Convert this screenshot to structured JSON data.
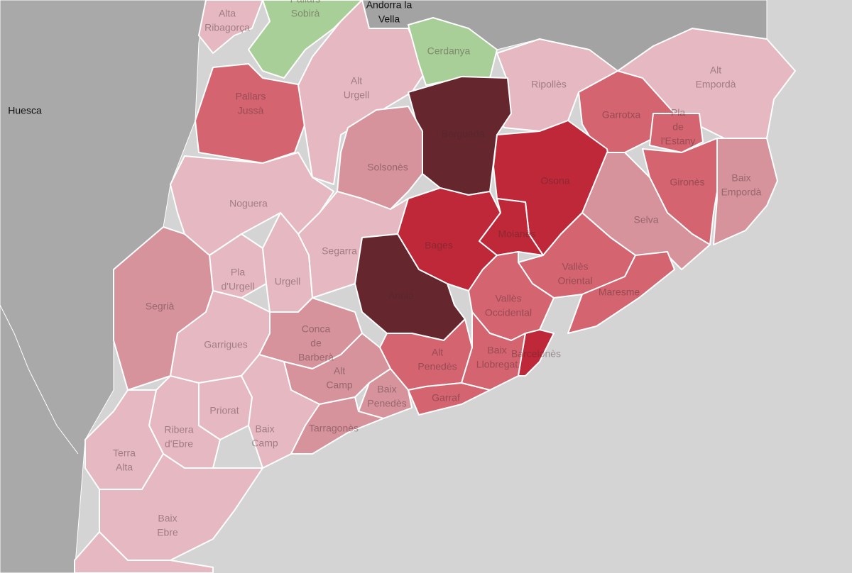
{
  "places": [
    {
      "label": [
        "Huesca"
      ]
    },
    {
      "label": [
        "Andorra la",
        "Vella"
      ]
    }
  ],
  "regions": [
    {
      "label": [
        "Alta",
        "Ribagorça"
      ],
      "color": "#e6b8c1"
    },
    {
      "label": [
        "Pallars",
        "Sobirà"
      ],
      "color": "#a9cf99"
    },
    {
      "label": [
        "Pallars",
        "Jussà"
      ],
      "color": "#d4646f"
    },
    {
      "label": [
        "Alt",
        "Urgell"
      ],
      "color": "#e6b8c1"
    },
    {
      "label": [
        "Cerdanya"
      ],
      "color": "#a9cf99"
    },
    {
      "label": [
        "Ripollès"
      ],
      "color": "#e6b8c1"
    },
    {
      "label": [
        "Alt",
        "Empordà"
      ],
      "color": "#e6b8c1"
    },
    {
      "label": [
        "Berguedà"
      ],
      "color": "#66262e"
    },
    {
      "label": [
        "Garrotxa"
      ],
      "color": "#d4646f"
    },
    {
      "label": [
        "Pla",
        "de",
        "l'Estany"
      ],
      "color": "#d4646f"
    },
    {
      "label": [
        "Solsonès"
      ],
      "color": "#d6939c"
    },
    {
      "label": [
        "Osona"
      ],
      "color": "#bf2838"
    },
    {
      "label": [
        "Gironès"
      ],
      "color": "#d4646f"
    },
    {
      "label": [
        "Baix",
        "Empordà"
      ],
      "color": "#d6939c"
    },
    {
      "label": [
        "Noguera"
      ],
      "color": "#e6b8c1"
    },
    {
      "label": [
        "Selva"
      ],
      "color": "#d6939c"
    },
    {
      "label": [
        "Segarra"
      ],
      "color": "#e6b8c1"
    },
    {
      "label": [
        "Bages"
      ],
      "color": "#bf2838"
    },
    {
      "label": [
        "Moianès"
      ],
      "color": "#bf2838"
    },
    {
      "label": [
        "Pla",
        "d'Urgell"
      ],
      "color": "#e6b8c1"
    },
    {
      "label": [
        "Urgell"
      ],
      "color": "#e6b8c1"
    },
    {
      "label": [
        "Vallès",
        "Oriental"
      ],
      "color": "#d4646f"
    },
    {
      "label": [
        "Maresme"
      ],
      "color": "#d4646f"
    },
    {
      "label": [
        "Segrià"
      ],
      "color": "#d6939c"
    },
    {
      "label": [
        "Anoia"
      ],
      "color": "#66262e"
    },
    {
      "label": [
        "Vallès",
        "Occidental"
      ],
      "color": "#d4646f"
    },
    {
      "label": [
        "Garrigues"
      ],
      "color": "#e6b8c1"
    },
    {
      "label": [
        "Conca",
        "de",
        "Barberà"
      ],
      "color": "#d6939c"
    },
    {
      "label": [
        "Alt",
        "Penedès"
      ],
      "color": "#d4646f"
    },
    {
      "label": [
        "Baix",
        "Llobregat"
      ],
      "color": "#d4646f"
    },
    {
      "label": [
        "Barcelonès"
      ],
      "color": "#bf2838"
    },
    {
      "label": [
        "Alt",
        "Camp"
      ],
      "color": "#d6939c"
    },
    {
      "label": [
        "Baix",
        "Penedès"
      ],
      "color": "#d6939c"
    },
    {
      "label": [
        "Garraf"
      ],
      "color": "#d4646f"
    },
    {
      "label": [
        "Priorat"
      ],
      "color": "#e6b8c1"
    },
    {
      "label": [
        "Baix",
        "Camp"
      ],
      "color": "#e6b8c1"
    },
    {
      "label": [
        "Ribera",
        "d'Ebre"
      ],
      "color": "#e6b8c1"
    },
    {
      "label": [
        "Tarragonès"
      ],
      "color": "#d6939c"
    },
    {
      "label": [
        "Terra",
        "Alta"
      ],
      "color": "#e6b8c1"
    },
    {
      "label": [
        "Baix",
        "Ebre"
      ],
      "color": "#e6b8c1"
    }
  ]
}
